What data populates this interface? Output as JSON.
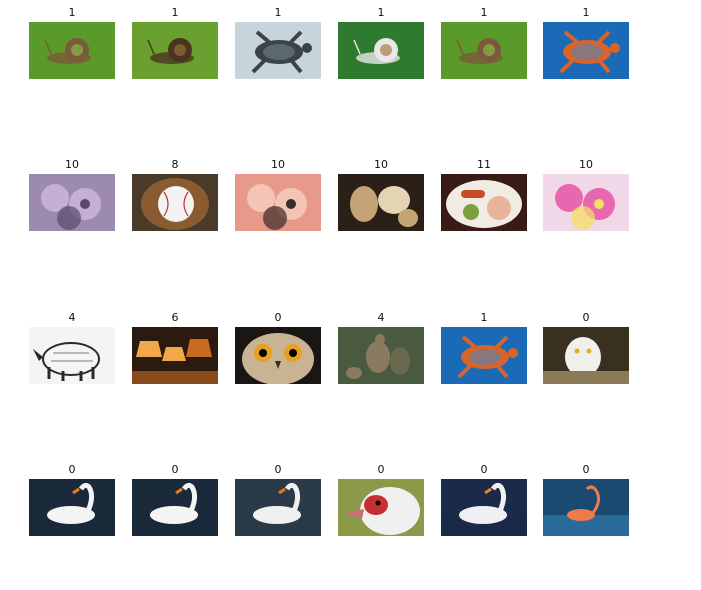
{
  "grid": {
    "rows": [
      [
        {
          "label": "1",
          "subject": "snail on grass",
          "colors": [
            "#5a9a2a",
            "#8cc44a",
            "#7a5a3a"
          ]
        },
        {
          "label": "1",
          "subject": "snail close-up",
          "colors": [
            "#6aa030",
            "#9c7a3a",
            "#4a3420"
          ]
        },
        {
          "label": "1",
          "subject": "tortoise on rock",
          "colors": [
            "#c8d4dc",
            "#7c8c94",
            "#3a4448"
          ]
        },
        {
          "label": "1",
          "subject": "snail on leaf",
          "colors": [
            "#2e7a2e",
            "#9c6a2a",
            "#e8e8e8"
          ]
        },
        {
          "label": "1",
          "subject": "snail on grass",
          "colors": [
            "#5a9a2a",
            "#8cc44a",
            "#7a5a3a"
          ]
        },
        {
          "label": "1",
          "subject": "sea turtle",
          "colors": [
            "#1a6ab8",
            "#3a8ad0",
            "#d8642a"
          ]
        }
      ],
      [
        {
          "label": "10",
          "subject": "purple flowers",
          "colors": [
            "#9c8ab0",
            "#c4b0d4",
            "#5a4a6a"
          ]
        },
        {
          "label": "8",
          "subject": "baseball in glove",
          "colors": [
            "#4a3a2a",
            "#f2f2f2",
            "#8a5a30"
          ]
        },
        {
          "label": "10",
          "subject": "pink carnations",
          "colors": [
            "#e89a8a",
            "#f4c4b4",
            "#3a2a28"
          ]
        },
        {
          "label": "10",
          "subject": "dried seed pods",
          "colors": [
            "#2a2018",
            "#c4a474",
            "#e4d4b4"
          ]
        },
        {
          "label": "11",
          "subject": "plate of food",
          "colors": [
            "#3a1a14",
            "#e8b49a",
            "#c84a2a"
          ]
        },
        {
          "label": "10",
          "subject": "pink rose",
          "colors": [
            "#f0d8e8",
            "#e868b0",
            "#f4e060"
          ]
        }
      ],
      [
        {
          "label": "4",
          "subject": "rhinoceros engraving",
          "colors": [
            "#f4f4f4",
            "#7a7a7a",
            "#2a2a2a"
          ]
        },
        {
          "label": "6",
          "subject": "table lamps",
          "colors": [
            "#2a1a10",
            "#f0a848",
            "#c86a20"
          ]
        },
        {
          "label": "0",
          "subject": "owl face",
          "colors": [
            "#1a1614",
            "#c8b494",
            "#e8a020"
          ]
        },
        {
          "label": "4",
          "subject": "kangaroos",
          "colors": [
            "#4a5a40",
            "#8a7a60",
            "#6a6a50"
          ]
        },
        {
          "label": "1",
          "subject": "sea turtle",
          "colors": [
            "#1a6ab8",
            "#3a8ad0",
            "#d8642a"
          ]
        },
        {
          "label": "0",
          "subject": "snowy owl",
          "colors": [
            "#3a3020",
            "#f0f0ea",
            "#8a7a58"
          ]
        }
      ],
      [
        {
          "label": "0",
          "subject": "swan on water",
          "colors": [
            "#1a2a3a",
            "#f4f4f4",
            "#e87a20"
          ]
        },
        {
          "label": "0",
          "subject": "swan on water",
          "colors": [
            "#1a2a3a",
            "#f4f4f4",
            "#e87a20"
          ]
        },
        {
          "label": "0",
          "subject": "swan with cygnet",
          "colors": [
            "#2a3a48",
            "#f0f0f0",
            "#e87a20"
          ]
        },
        {
          "label": "0",
          "subject": "muscovy duck head",
          "colors": [
            "#8a9a48",
            "#f0f0f0",
            "#c83030"
          ]
        },
        {
          "label": "0",
          "subject": "swan close-up",
          "colors": [
            "#1a2a48",
            "#f0f0f4",
            "#e8842a"
          ]
        },
        {
          "label": "0",
          "subject": "flamingo in water",
          "colors": [
            "#1a4a70",
            "#2a6a98",
            "#f07a4a"
          ]
        }
      ]
    ]
  }
}
